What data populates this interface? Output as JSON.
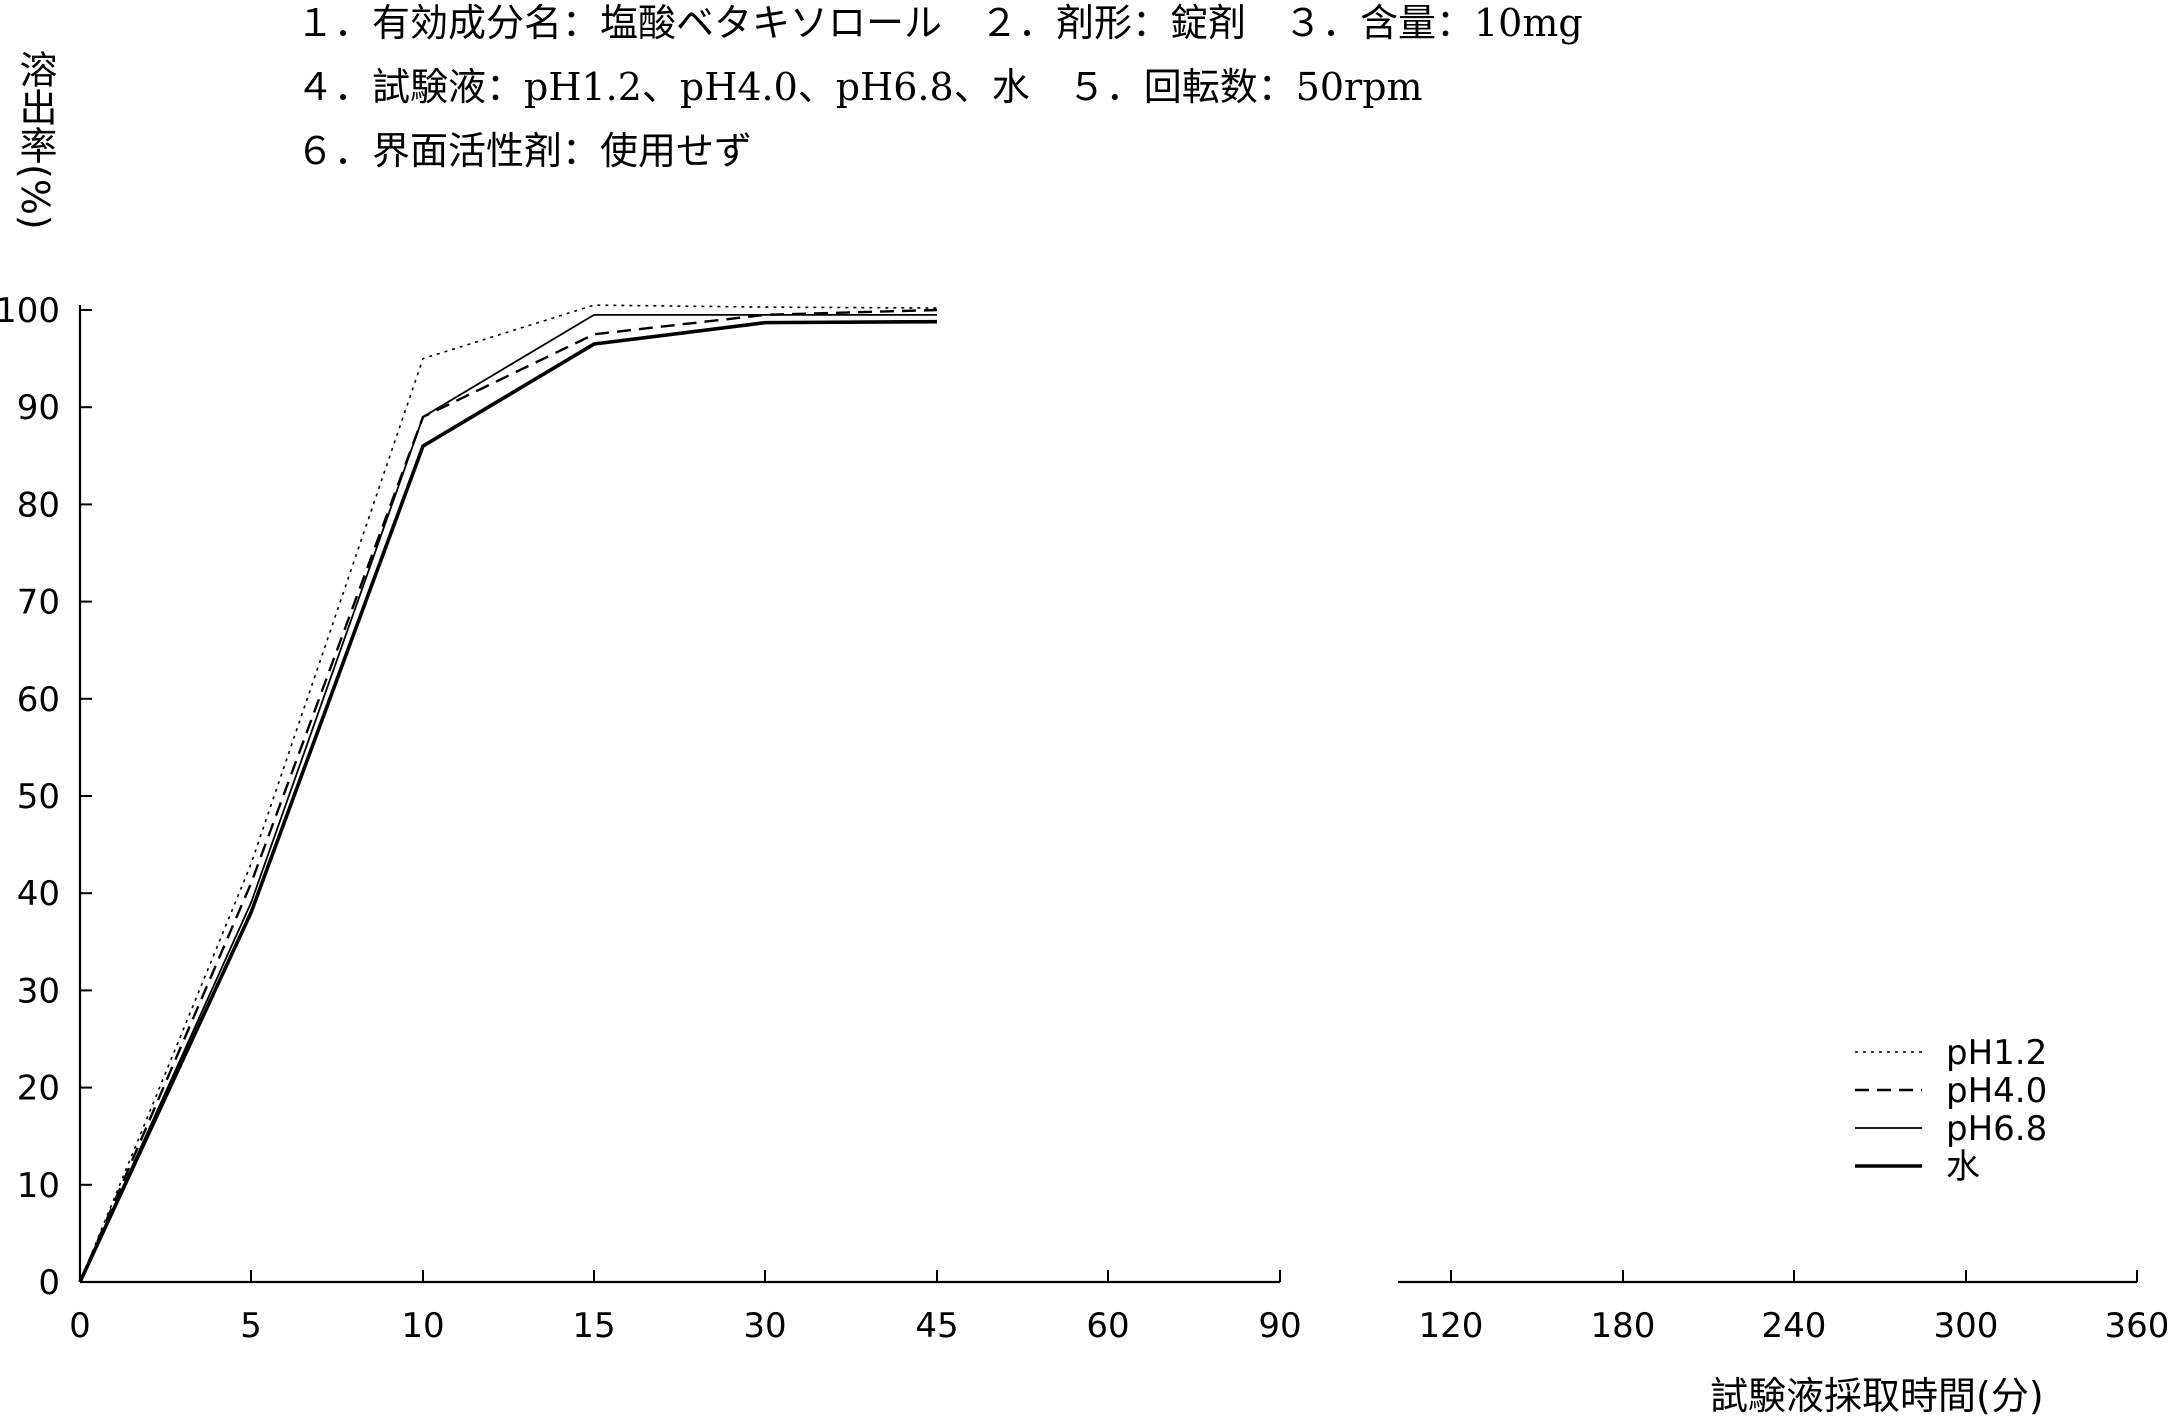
{
  "conditions": {
    "line1": "１．有効成分名：塩酸ベタキソロール　２．剤形：錠剤　３．含量：10mg",
    "line2": "４．試験液：pH1.2、pH4.0、pH6.8、水　５．回転数：50rpm",
    "line3": "６．界面活性剤：使用せず"
  },
  "chart_data": {
    "type": "line",
    "title": "",
    "ylabel": "溶出率(%)",
    "xlabel": "試験液採取時間(分)",
    "x_ticks": [
      "0",
      "5",
      "10",
      "15",
      "30",
      "45",
      "60",
      "90",
      "120",
      "180",
      "240",
      "300",
      "360"
    ],
    "y_ticks": [
      "0",
      "10",
      "20",
      "30",
      "40",
      "50",
      "60",
      "70",
      "80",
      "90",
      "100"
    ],
    "ylim": [
      0,
      100
    ],
    "x_axis_break": "between 90 and 120",
    "x": [
      0,
      5,
      10,
      15,
      30,
      45
    ],
    "series": [
      {
        "name": "pH1.2",
        "style": "dotted",
        "values": [
          0,
          43,
          95,
          100.5,
          100.3,
          100.2
        ]
      },
      {
        "name": "pH4.0",
        "style": "dashed",
        "values": [
          0,
          41,
          89,
          97.5,
          99.5,
          100
        ]
      },
      {
        "name": "pH6.8",
        "style": "thin",
        "values": [
          0,
          39,
          89,
          99.5,
          99.5,
          99.5
        ]
      },
      {
        "name": "水",
        "style": "thick",
        "values": [
          0,
          38,
          86,
          96.5,
          98.7,
          98.8
        ]
      }
    ],
    "legend_position": "bottom-right"
  }
}
